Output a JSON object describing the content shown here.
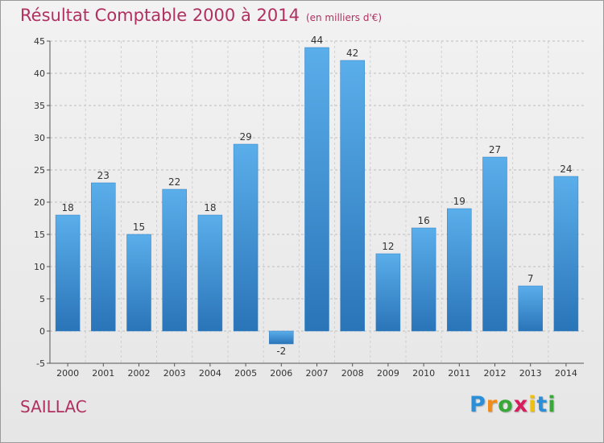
{
  "chart_data": {
    "type": "bar",
    "title": "Résultat Comptable 2000 à 2014",
    "subtitle": "(en milliers d'€)",
    "categories": [
      "2000",
      "2001",
      "2002",
      "2003",
      "2004",
      "2005",
      "2006",
      "2007",
      "2008",
      "2009",
      "2010",
      "2011",
      "2012",
      "2013",
      "2014"
    ],
    "values": [
      18,
      23,
      15,
      22,
      18,
      29,
      -2,
      44,
      42,
      12,
      16,
      19,
      27,
      7,
      24
    ],
    "ylim": [
      -5,
      45
    ],
    "yticks": [
      -5,
      0,
      5,
      10,
      15,
      20,
      25,
      30,
      35,
      40,
      45
    ],
    "xlabel": "",
    "ylabel": "",
    "grid": "horizontal dashed",
    "bar_color": "#4a9de0"
  },
  "footer": {
    "commune": "SAILLAC",
    "logo_letters": [
      "P",
      "r",
      "o",
      "x",
      "i",
      "t",
      "i"
    ],
    "logo_colors": [
      "#2a8fd8",
      "#f08c1c",
      "#38a838",
      "#d81c5c",
      "#f0c010",
      "#2a8fd8",
      "#38a838"
    ]
  }
}
